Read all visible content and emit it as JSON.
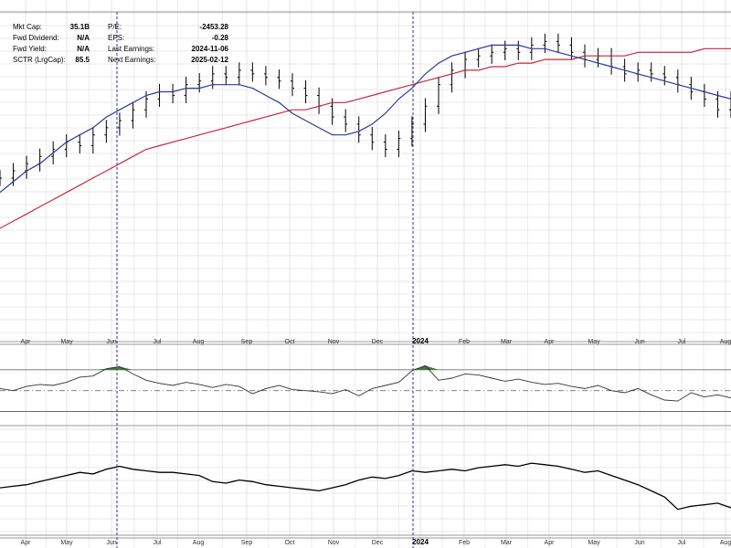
{
  "fundamentals_left": [
    {
      "label": "Mkt Cap:",
      "value": "35.1B"
    },
    {
      "label": "Fwd Dividend:",
      "value": "N/A"
    },
    {
      "label": "Fwd Yield:",
      "value": "N/A"
    },
    {
      "label": "SCTR (LrgCap):",
      "value": "85.5"
    }
  ],
  "fundamentals_right": [
    {
      "label": "P/E:",
      "value": "-2453.28"
    },
    {
      "label": "EPS:",
      "value": "-0.28"
    },
    {
      "label": "Last Earnings:",
      "value": "2024-11-06"
    },
    {
      "label": "Next Earnings:",
      "value": "2025-02-12"
    }
  ],
  "colors": {
    "price_bars": "#000000",
    "ma_short": "#2b3a9e",
    "ma_long": "#c8283c",
    "grid": "#d4d4d4",
    "overbought_fill": "#3d7a3d",
    "oversold_fill": "#a02828",
    "separator": "#9a9a9a",
    "event_line": "#3030a0"
  },
  "chart_data": [
    {
      "type": "line",
      "panel": "price",
      "series": [
        {
          "role": "ohlc-bars",
          "values": [
            104,
            106,
            108,
            110,
            112,
            114,
            113,
            116,
            118,
            120,
            123,
            126,
            128,
            127,
            130,
            131,
            133,
            132,
            134,
            133,
            132,
            131,
            129,
            127,
            124,
            121,
            119,
            116,
            114,
            112,
            115,
            119,
            124,
            130,
            134,
            137,
            138,
            139,
            140,
            139,
            141,
            142,
            141,
            139,
            137,
            138,
            135,
            133,
            134,
            133,
            132,
            130,
            128,
            126,
            123,
            126
          ]
        },
        {
          "role": "moving-average-short",
          "values": [
            100,
            103,
            106,
            108,
            111,
            114,
            116,
            118,
            121,
            123,
            125,
            127,
            128,
            128,
            129,
            129,
            130,
            130,
            130,
            129,
            127,
            125,
            122,
            120,
            118,
            116,
            116,
            117,
            119,
            122,
            126,
            129,
            133,
            136,
            138,
            139,
            140,
            141,
            141,
            141,
            140,
            140,
            139,
            138,
            137,
            136,
            135,
            134,
            133,
            132,
            131,
            130,
            129,
            128,
            127,
            126
          ]
        },
        {
          "role": "moving-average-long",
          "values": [
            90,
            92,
            94,
            96,
            98,
            100,
            102,
            104,
            106,
            108,
            110,
            112,
            113,
            114,
            115,
            116,
            117,
            118,
            119,
            120,
            121,
            122,
            123,
            123,
            124,
            125,
            125,
            126,
            127,
            128,
            129,
            130,
            131,
            132,
            133,
            134,
            134,
            135,
            135,
            136,
            136,
            137,
            137,
            137,
            138,
            138,
            138,
            138,
            139,
            139,
            139,
            139,
            139,
            140,
            140,
            140
          ]
        }
      ],
      "x_ticks": [
        "Apr",
        "May",
        "Jun",
        "Jul",
        "Aug",
        "Sep",
        "Oct",
        "Nov",
        "Dec",
        "2024",
        "Feb",
        "Mar",
        "Apr",
        "May",
        "Jun",
        "Jul",
        "Aug"
      ],
      "grid": true
    },
    {
      "type": "line",
      "panel": "oscillator",
      "series": [
        {
          "role": "oscillator",
          "values": [
            52,
            50,
            54,
            56,
            55,
            58,
            63,
            64,
            71,
            73,
            66,
            60,
            57,
            55,
            58,
            56,
            53,
            56,
            54,
            47,
            52,
            55,
            51,
            50,
            49,
            47,
            51,
            45,
            52,
            55,
            58,
            69,
            74,
            60,
            62,
            66,
            65,
            62,
            59,
            61,
            58,
            56,
            57,
            54,
            52,
            55,
            50,
            48,
            52,
            46,
            41,
            40,
            48,
            44,
            46,
            43
          ]
        }
      ],
      "levels": [
        70,
        50,
        30
      ],
      "grid": true
    },
    {
      "type": "line",
      "panel": "relative-strength",
      "series": [
        {
          "role": "relative-strength",
          "values": [
            62,
            63,
            64,
            66,
            68,
            70,
            72,
            71,
            74,
            76,
            74,
            73,
            72,
            72,
            71,
            70,
            66,
            65,
            67,
            66,
            64,
            63,
            62,
            61,
            60,
            62,
            64,
            67,
            69,
            68,
            70,
            73,
            72,
            73,
            74,
            73,
            75,
            76,
            77,
            76,
            78,
            77,
            76,
            74,
            72,
            73,
            70,
            67,
            64,
            60,
            56,
            48,
            50,
            51,
            52,
            49
          ]
        }
      ],
      "x_ticks": [
        "Apr",
        "May",
        "Jun",
        "Jul",
        "Aug",
        "Sep",
        "Oct",
        "Nov",
        "Dec",
        "2024",
        "Feb",
        "Mar",
        "Apr",
        "May",
        "Jun",
        "Jul",
        "Aug"
      ],
      "grid": true
    }
  ]
}
